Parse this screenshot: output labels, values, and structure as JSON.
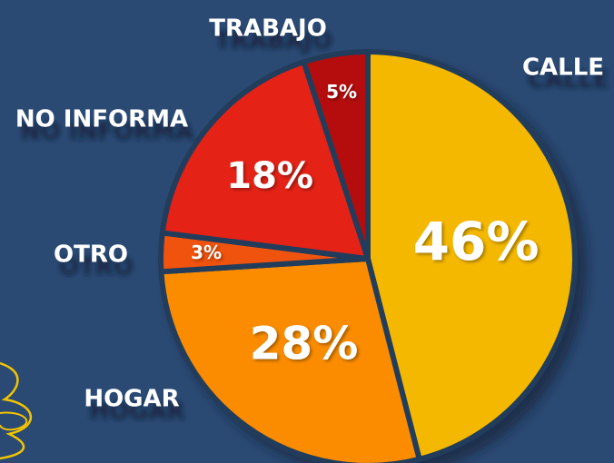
{
  "chart_data": {
    "type": "pie",
    "categories": [
      "CALLE",
      "HOGAR",
      "OTRO",
      "NO INFORMA",
      "TRABAJO"
    ],
    "values": [
      46,
      28,
      3,
      18,
      5
    ],
    "value_labels": [
      "46%",
      "28%",
      "3%",
      "18%",
      "5%"
    ],
    "colors": [
      "#f5b800",
      "#fb8c00",
      "#f0520f",
      "#e52313",
      "#b50e0a"
    ]
  }
}
